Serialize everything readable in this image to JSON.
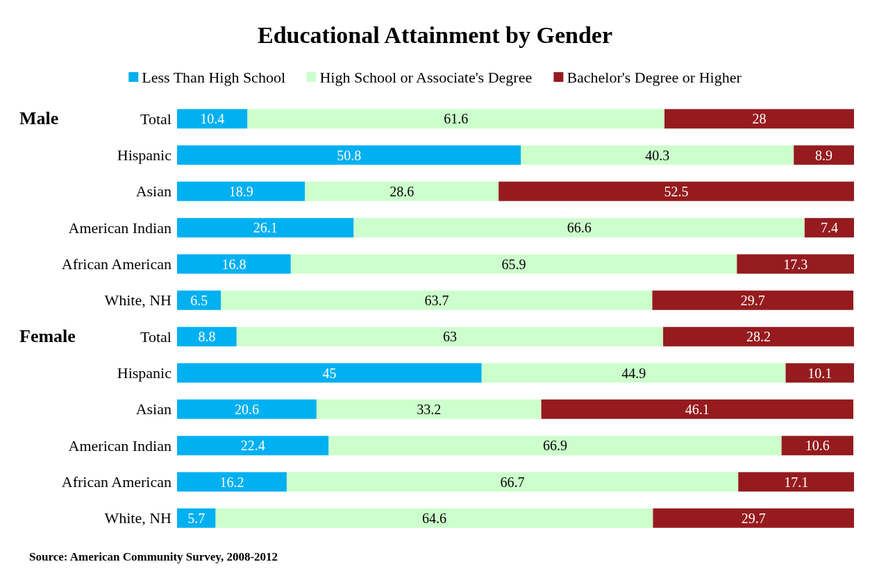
{
  "chart_data": {
    "type": "bar",
    "orientation": "horizontal",
    "stacked": true,
    "title": "Educational Attainment by Gender",
    "categories": [
      "Total",
      "Hispanic",
      "Asian",
      "American Indian",
      "African American",
      "White, NH",
      "Total",
      "Hispanic",
      "Asian",
      "American Indian",
      "African American",
      "White, NH"
    ],
    "series": [
      {
        "name": "Less Than High School",
        "color": "#00b0f0",
        "values": [
          10.4,
          50.8,
          18.9,
          26.1,
          16.8,
          6.5,
          8.8,
          45,
          20.6,
          22.4,
          16.2,
          5.7
        ]
      },
      {
        "name": "High School or Associate's Degree",
        "color": "#ccffcc",
        "values": [
          61.6,
          40.3,
          28.6,
          66.6,
          65.9,
          63.7,
          63,
          44.9,
          33.2,
          66.9,
          66.7,
          64.6
        ]
      },
      {
        "name": "Bachelor's Degree or Higher",
        "color": "#951b1e",
        "values": [
          28,
          8.9,
          52.5,
          7.4,
          17.3,
          29.7,
          28.2,
          10.1,
          46.1,
          10.6,
          17.1,
          29.7
        ]
      }
    ],
    "xlim": [
      0,
      100
    ],
    "data_labels": true,
    "legend": "top",
    "grid": false,
    "tick_labels": "y",
    "annotations": [
      "Male",
      "Female",
      "Source: American Community Survey, 2008-2012"
    ]
  }
}
